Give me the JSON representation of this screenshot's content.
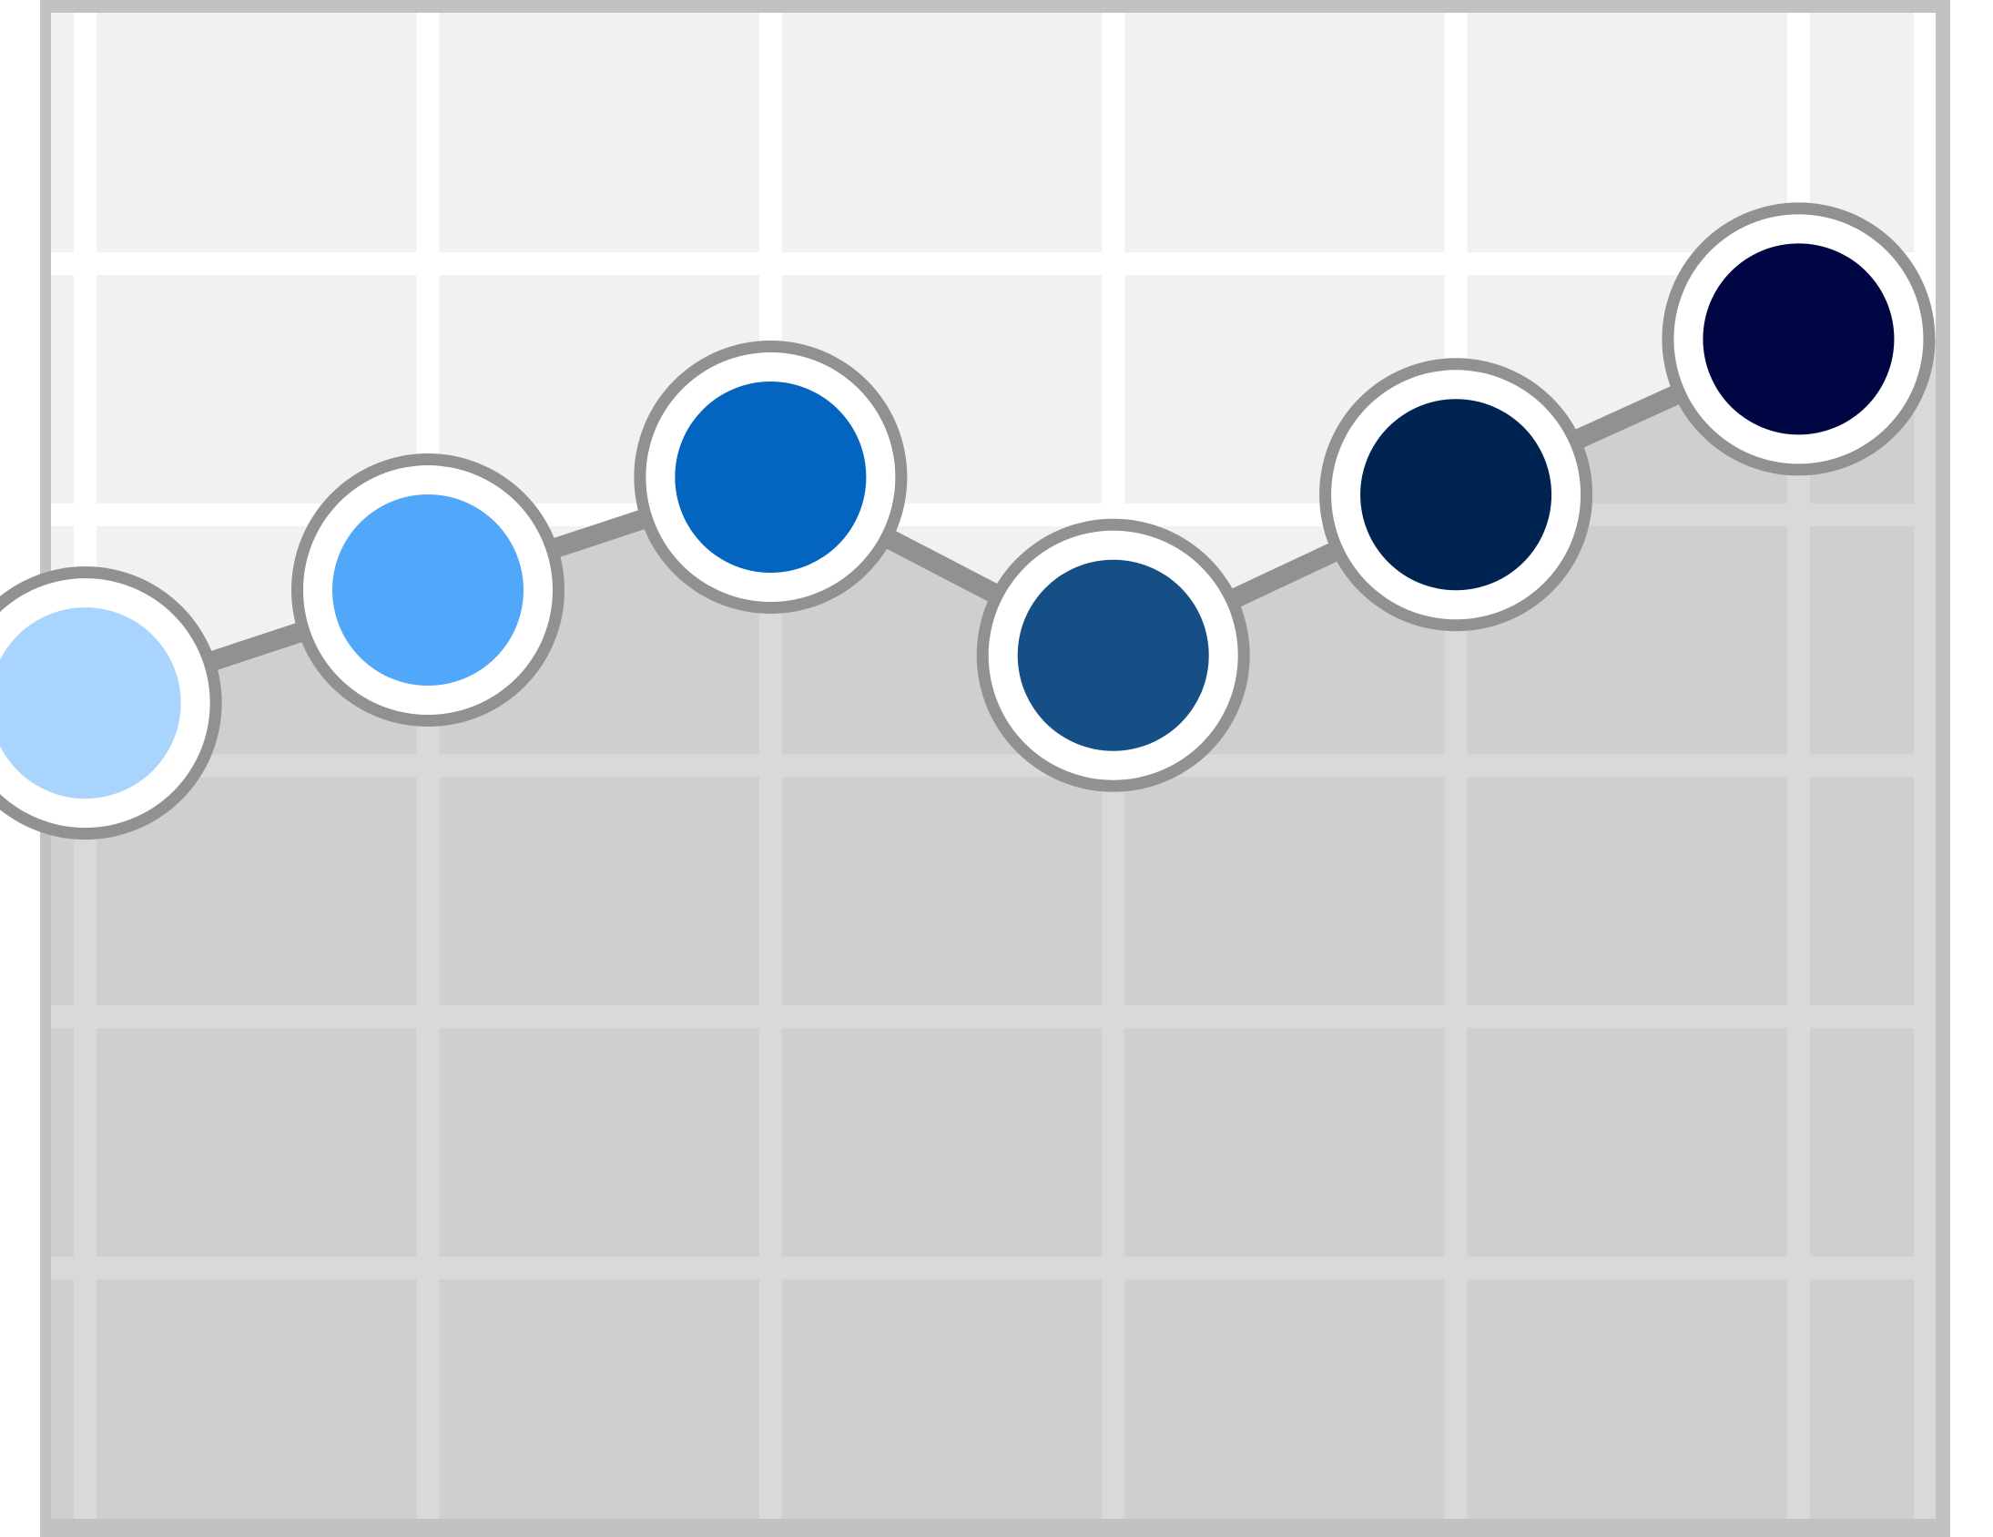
{
  "chart_data": {
    "type": "line",
    "title": "",
    "xlabel": "",
    "ylabel": "",
    "x": [
      1,
      2,
      3,
      4,
      5,
      6
    ],
    "y": [
      3.25,
      3.7,
      4.15,
      3.44,
      4.08,
      4.7
    ],
    "xlim": [
      0.9,
      6.4
    ],
    "ylim": [
      0,
      6
    ],
    "grid": true,
    "area_fill": true,
    "point_colors": [
      "#a8d4fd",
      "#51a7f9",
      "#0365c0",
      "#164f86",
      "#002452",
      "#000543"
    ],
    "colors": {
      "background": "#f1f1f1",
      "area": "#cfcfcf",
      "gridline": "#ffffff",
      "line": "#919191",
      "frame": "#c2c2c2",
      "marker_ring": "#ffffff",
      "marker_outline": "#919191"
    }
  }
}
